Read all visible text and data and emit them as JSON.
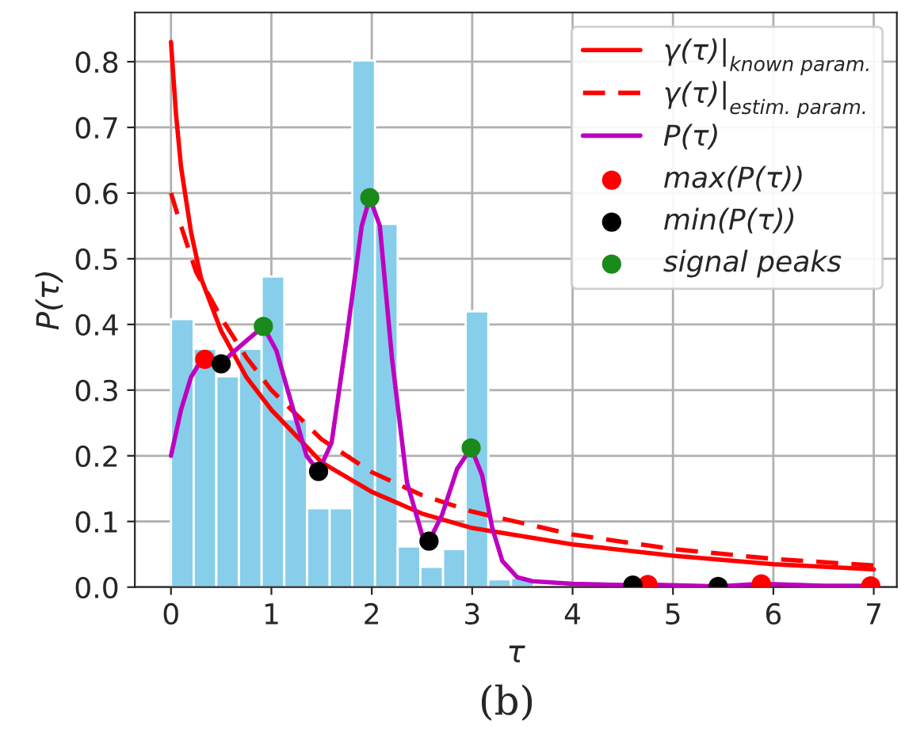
{
  "chart_data": {
    "type": "histogram",
    "xlabel": "τ",
    "ylabel": "P(τ)",
    "annotations": [
      "(b)"
    ],
    "bins": [
      0,
      0.226,
      0.452,
      0.677,
      0.903,
      1.129,
      1.355,
      1.581,
      1.806,
      2.032,
      2.258,
      2.484,
      2.71,
      2.935,
      3.161,
      3.387,
      3.613,
      3.839,
      4.065,
      4.29,
      4.516,
      4.742,
      4.968,
      5.194,
      5.419,
      5.645,
      5.871,
      6.097,
      6.323,
      6.548,
      6.774,
      7.0
    ],
    "values": [
      0.408,
      0.363,
      0.321,
      0.363,
      0.473,
      0.256,
      0.12,
      0.12,
      0.802,
      0.553,
      0.062,
      0.031,
      0.058,
      0.42,
      0.012,
      0.014,
      null,
      null,
      null,
      null,
      null,
      0,
      0,
      0,
      0,
      0,
      0,
      0,
      0,
      0,
      0
    ],
    "color": "#87ceeb",
    "series": [
      {
        "type": "line",
        "name": "γ(τ)|$_{known param.}$",
        "color": "#ff0000",
        "line_style": "solid",
        "x": [
          0,
          0.05,
          0.1,
          0.2,
          0.3,
          0.5,
          0.75,
          1,
          1.5,
          2,
          2.5,
          3,
          4,
          5,
          6,
          7
        ],
        "values": [
          0.83,
          0.72,
          0.64,
          0.54,
          0.47,
          0.39,
          0.32,
          0.27,
          0.19,
          0.145,
          0.112,
          0.09,
          0.065,
          0.048,
          0.035,
          0.027
        ]
      },
      {
        "type": "line",
        "name": "γ(τ)|$_{estim. param.}$",
        "color": "#ff0000",
        "line_style": "dashed",
        "x": [
          0,
          0.1,
          0.25,
          0.5,
          0.75,
          1,
          1.5,
          2,
          2.5,
          3,
          4,
          5,
          6,
          7
        ],
        "values": [
          0.6,
          0.55,
          0.48,
          0.41,
          0.35,
          0.3,
          0.225,
          0.175,
          0.14,
          0.115,
          0.08,
          0.058,
          0.043,
          0.033
        ]
      },
      {
        "type": "line",
        "name": "P(τ)",
        "color": "#bf00bf",
        "line_style": "solid",
        "x": [
          0,
          0.1,
          0.2,
          0.3,
          0.45,
          0.5,
          0.6,
          0.75,
          0.92,
          1.05,
          1.2,
          1.35,
          1.47,
          1.6,
          1.75,
          1.9,
          1.98,
          2.08,
          2.2,
          2.35,
          2.5,
          2.57,
          2.7,
          2.85,
          2.99,
          3.1,
          3.2,
          3.3,
          3.45,
          3.6,
          4,
          4.6,
          4.75,
          5.45,
          5.88,
          6.5,
          7
        ],
        "values": [
          0.2,
          0.27,
          0.32,
          0.345,
          0.342,
          0.34,
          0.355,
          0.375,
          0.397,
          0.36,
          0.28,
          0.2,
          0.176,
          0.22,
          0.38,
          0.55,
          0.593,
          0.55,
          0.35,
          0.16,
          0.08,
          0.07,
          0.11,
          0.18,
          0.212,
          0.17,
          0.09,
          0.04,
          0.015,
          0.009,
          0.005,
          0.003,
          0.004,
          0.001,
          0.005,
          0.002,
          0.002
        ]
      },
      {
        "type": "scatter",
        "name": "max(P(τ))",
        "color": "#ff0000",
        "marker": "circle",
        "x": [
          0.337,
          4.75,
          5.88,
          6.97
        ],
        "values": [
          0.347,
          0.004,
          0.005,
          0.002
        ]
      },
      {
        "type": "scatter",
        "name": "min(P(τ))",
        "color": "#000000",
        "marker": "circle",
        "x": [
          0.5,
          1.47,
          2.57,
          4.6,
          5.45
        ],
        "values": [
          0.34,
          0.176,
          0.07,
          0.003,
          0.001
        ]
      },
      {
        "type": "scatter",
        "name": "signal peaks",
        "color": "#1a8a1a",
        "marker": "circle",
        "x": [
          0.92,
          1.98,
          2.99
        ],
        "values": [
          0.397,
          0.593,
          0.212
        ]
      }
    ],
    "xlim": [
      -0.36,
      7.23
    ],
    "ylim": [
      0,
      0.875
    ],
    "xticks": [
      0,
      1,
      2,
      3,
      4,
      5,
      6,
      7
    ],
    "yticks": [
      {
        "value": 0,
        "label": "0.0"
      },
      0.1,
      0.2,
      0.3,
      0.4,
      0.5,
      0.6,
      0.7,
      0.8
    ],
    "grid": true,
    "legend": "top right"
  }
}
